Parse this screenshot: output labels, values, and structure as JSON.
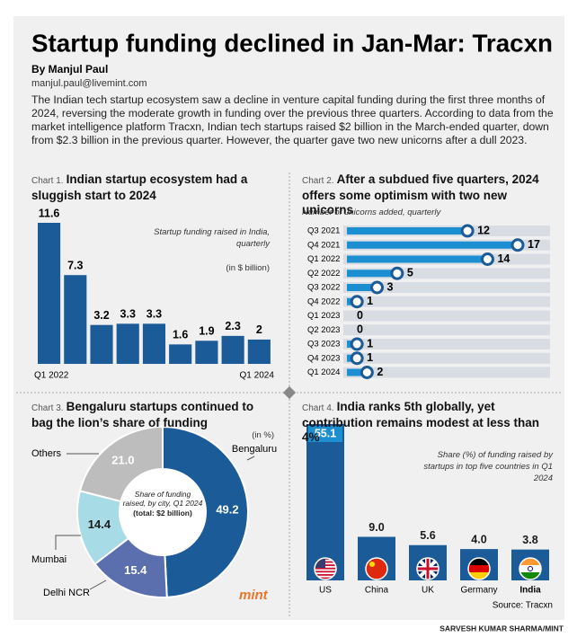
{
  "header": {
    "title": "Startup funding declined in Jan-Mar: Tracxn",
    "byline": "By Manjul Paul",
    "email": "manjul.paul@livemint.com",
    "body": "The Indian tech startup ecosystem saw a decline in venture capital funding during the first three months of 2024, reversing the moderate growth in funding over the previous three quarters. According to data from the market intelligence platform Tracxn, Indian tech startups raised $2 billion in the March-ended quarter, down from $2.3 billion in the previous quarter. However, the quarter gave two new unicorns after a dull 2023."
  },
  "chart_data": [
    {
      "type": "bar",
      "label": "Chart 1.",
      "title": "Indian startup ecosystem had a sluggish start to 2024",
      "note": "Startup funding raised in India, quarterly",
      "unit": "(in $ billion)",
      "categories": [
        "Q1 2022",
        null,
        null,
        null,
        null,
        null,
        null,
        null,
        "Q1 2024"
      ],
      "values": [
        11.6,
        7.3,
        3.2,
        3.3,
        3.3,
        1.6,
        1.9,
        2.3,
        2
      ],
      "color": "#1b5b97"
    },
    {
      "type": "lollipop",
      "label": "Chart 2.",
      "title": "After a subdued five quarters, 2024 offers some optimism with two new unicorns",
      "subtitle": "Number of unicorns added, quarterly",
      "categories": [
        "Q3 2021",
        "Q4 2021",
        "Q1 2022",
        "Q2 2022",
        "Q3 2022",
        "Q4 2022",
        "Q1 2023",
        "Q2 2023",
        "Q3 2023",
        "Q4 2023",
        "Q1 2024"
      ],
      "values": [
        12,
        17,
        14,
        5,
        3,
        1,
        0,
        0,
        1,
        1,
        2
      ],
      "color": "#1b8fd2"
    },
    {
      "type": "donut",
      "label": "Chart 3.",
      "title": "Bengaluru startups continued to bag the lion’s share of funding",
      "unit": "(in %)",
      "center_note": "Share of funding raised, by city, Q1 2024",
      "center_total": "(total: $2 billion)",
      "categories": [
        "Bengaluru",
        "Delhi NCR",
        "Mumbai",
        "Others"
      ],
      "values": [
        49.2,
        15.4,
        14.4,
        21.0
      ],
      "value_labels": [
        "49.2",
        "15.4",
        "14.4",
        "21.0"
      ],
      "colors": [
        "#1b5b97",
        "#5b6fae",
        "#a7dbe6",
        "#bdbdbd"
      ]
    },
    {
      "type": "bar",
      "label": "Chart 4.",
      "title": "India ranks 5th globally, yet contribution remains modest at less than 4%",
      "note": "Share (%) of funding raised by startups in top five countries in Q1 2024",
      "source": "Source: Tracxn",
      "categories": [
        "US",
        "China",
        "UK",
        "Germany",
        "India"
      ],
      "values": [
        55.1,
        9.0,
        5.6,
        4.0,
        3.8
      ],
      "value_labels": [
        "55.1",
        "9.0",
        "5.6",
        "4.0",
        "3.8"
      ],
      "color": "#1b5b97"
    }
  ],
  "logo": "mint",
  "credit": "SARVESH KUMAR SHARMA/MINT"
}
